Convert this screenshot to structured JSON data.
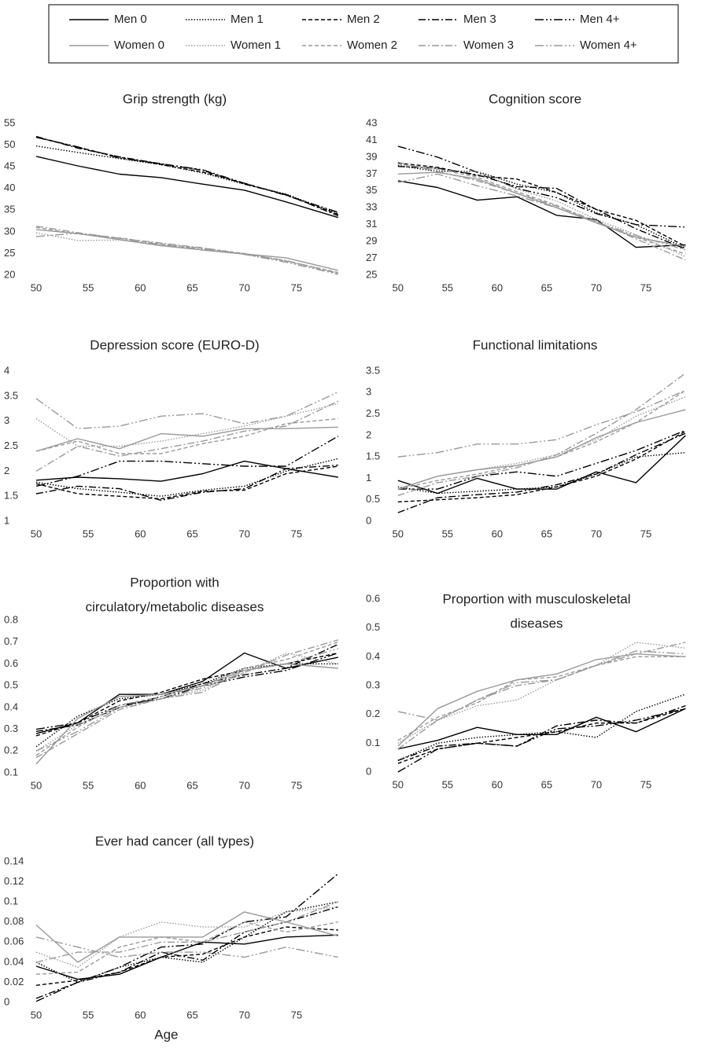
{
  "legend": [
    {
      "name": "Men 0",
      "color": "#000000",
      "dash": "solid"
    },
    {
      "name": "Men 1",
      "color": "#000000",
      "dash": "dotted"
    },
    {
      "name": "Men 2",
      "color": "#000000",
      "dash": "dashed"
    },
    {
      "name": "Men 3",
      "color": "#000000",
      "dash": "dashdot"
    },
    {
      "name": "Men 4+",
      "color": "#000000",
      "dash": "dashdotdot"
    },
    {
      "name": "Women 0",
      "color": "#999999",
      "dash": "solid"
    },
    {
      "name": "Women 1",
      "color": "#999999",
      "dash": "dotted"
    },
    {
      "name": "Women 2",
      "color": "#999999",
      "dash": "dashed"
    },
    {
      "name": "Women 3",
      "color": "#999999",
      "dash": "dashdot"
    },
    {
      "name": "Women 4+",
      "color": "#999999",
      "dash": "dashdotdot"
    }
  ],
  "chart_data": [
    {
      "type": "line",
      "title": "Grip strength (kg)",
      "x": [
        50,
        54,
        58,
        62,
        66,
        70,
        74,
        79
      ],
      "xlim": [
        49.7,
        80
      ],
      "xticks": [
        50,
        55,
        60,
        65,
        70,
        75
      ],
      "ylim": [
        20,
        55
      ],
      "yticks": [
        20,
        25,
        30,
        35,
        40,
        45,
        50,
        55
      ],
      "series": [
        {
          "values": [
            47.4,
            45.2,
            43.3,
            42.5,
            41,
            39.6,
            36.9,
            33.3
          ]
        },
        {
          "values": [
            49.8,
            48.3,
            46.9,
            45.5,
            43.6,
            41,
            38.7,
            34.2
          ]
        },
        {
          "values": [
            51.8,
            49.5,
            47.2,
            45.5,
            43.8,
            41.2,
            38.5,
            34
          ]
        },
        {
          "values": [
            52,
            49.3,
            47.3,
            45.7,
            44.2,
            41,
            38.6,
            33.7
          ]
        },
        {
          "values": [
            51.8,
            49.6,
            47,
            45.7,
            44.3,
            41.2,
            38.4,
            34.5
          ]
        },
        {
          "values": [
            30.5,
            29.6,
            28.2,
            26.8,
            25.8,
            24.9,
            24,
            21.1
          ]
        },
        {
          "values": [
            29.8,
            28,
            28.1,
            27,
            25.8,
            24.8,
            23.2,
            20.5
          ]
        },
        {
          "values": [
            31,
            29.5,
            28.6,
            27.2,
            26.2,
            25,
            23.3,
            20.6
          ]
        },
        {
          "values": [
            31.3,
            29.8,
            28.5,
            27.4,
            26.3,
            24.9,
            23.4,
            20.4
          ]
        },
        {
          "values": [
            28.9,
            29.7,
            28.5,
            27,
            26,
            24.8,
            23,
            20.2
          ]
        }
      ]
    },
    {
      "type": "line",
      "title": "Cognition score",
      "x": [
        50,
        54,
        58,
        62,
        66,
        70,
        74,
        79
      ],
      "xlim": [
        49.7,
        80
      ],
      "xticks": [
        50,
        55,
        60,
        65,
        70,
        75
      ],
      "ylim": [
        25,
        43
      ],
      "yticks": [
        25,
        27,
        29,
        31,
        33,
        35,
        37,
        39,
        41,
        43
      ],
      "series": [
        {
          "values": [
            36.2,
            35.4,
            33.9,
            34.3,
            32.1,
            31.6,
            28.3,
            28.6
          ]
        },
        {
          "values": [
            38,
            37.3,
            37.3,
            35.8,
            34.8,
            32.4,
            31,
            28.2
          ]
        },
        {
          "values": [
            38.3,
            37.8,
            36.8,
            36.4,
            34.8,
            32.8,
            31.5,
            28.4
          ]
        },
        {
          "values": [
            37.9,
            37.7,
            36.9,
            35.5,
            35.3,
            32.8,
            30.5,
            28.1
          ]
        },
        {
          "values": [
            40.3,
            39,
            37.2,
            35.3,
            34.2,
            32.3,
            31,
            30.7
          ]
        },
        {
          "values": [
            37,
            37.2,
            36.4,
            34.7,
            33,
            31.2,
            29.5,
            28.4
          ]
        },
        {
          "values": [
            38.2,
            37.5,
            37.3,
            35.2,
            33.8,
            31.6,
            29.8,
            27.2
          ]
        },
        {
          "values": [
            38.2,
            37.6,
            36.6,
            34.9,
            33.3,
            31.2,
            29.5,
            27.5
          ]
        },
        {
          "values": [
            38.4,
            37.3,
            36.2,
            34.7,
            33.2,
            31.4,
            29.3,
            26.8
          ]
        },
        {
          "values": [
            36,
            37,
            35.6,
            34.4,
            33,
            31.3,
            29.7,
            28
          ]
        }
      ]
    },
    {
      "type": "line",
      "title": "Depression score (EURO-D)",
      "x": [
        50,
        54,
        58,
        62,
        66,
        70,
        74,
        79
      ],
      "xlim": [
        49.7,
        80
      ],
      "xticks": [
        50,
        55,
        60,
        65,
        70,
        75
      ],
      "ylim": [
        1,
        4
      ],
      "yticks": [
        1,
        1.5,
        2,
        2.5,
        3,
        3.5,
        4
      ],
      "series": [
        {
          "values": [
            1.82,
            1.88,
            1.85,
            1.8,
            1.95,
            2.2,
            2.05,
            1.88
          ]
        },
        {
          "values": [
            1.78,
            1.65,
            1.58,
            1.5,
            1.62,
            1.7,
            2,
            2.25
          ]
        },
        {
          "values": [
            1.75,
            1.55,
            1.5,
            1.45,
            1.6,
            1.62,
            1.95,
            2.1
          ]
        },
        {
          "values": [
            1.55,
            1.7,
            1.65,
            1.42,
            1.58,
            1.65,
            2.05,
            2.12
          ]
        },
        {
          "values": [
            1.7,
            1.9,
            2.2,
            2.2,
            2.15,
            2.1,
            2.1,
            2.7
          ]
        },
        {
          "values": [
            2.4,
            2.65,
            2.45,
            2.75,
            2.7,
            2.85,
            2.85,
            2.88
          ]
        },
        {
          "values": [
            3.05,
            2.5,
            2.5,
            2.6,
            2.75,
            2.9,
            3.1,
            3.35
          ]
        },
        {
          "values": [
            2.4,
            2.6,
            2.35,
            2.35,
            2.55,
            2.7,
            2.95,
            3.05
          ]
        },
        {
          "values": [
            2,
            2.5,
            2.3,
            2.45,
            2.6,
            2.8,
            2.9,
            3.4
          ]
        },
        {
          "values": [
            3.45,
            2.85,
            2.9,
            3.1,
            3.15,
            2.95,
            3.1,
            3.58
          ]
        }
      ]
    },
    {
      "type": "line",
      "title": "Functional limitations",
      "x": [
        50,
        54,
        58,
        62,
        66,
        70,
        74,
        79
      ],
      "xlim": [
        49.7,
        80
      ],
      "xticks": [
        50,
        55,
        60,
        65,
        70,
        75
      ],
      "ylim": [
        0,
        3.5
      ],
      "yticks": [
        0,
        0.5,
        1,
        1.5,
        2,
        2.5,
        3,
        3.5
      ],
      "series": [
        {
          "values": [
            0.95,
            0.65,
            1,
            0.75,
            0.75,
            1.15,
            0.9,
            2
          ]
        },
        {
          "values": [
            0.8,
            0.65,
            0.7,
            0.75,
            0.8,
            1.1,
            1.5,
            1.6
          ]
        },
        {
          "values": [
            0.45,
            0.5,
            0.55,
            0.62,
            0.8,
            1.05,
            1.45,
            2.1
          ]
        },
        {
          "values": [
            0.2,
            0.55,
            0.62,
            0.68,
            0.85,
            1.1,
            1.55,
            2.05
          ]
        },
        {
          "values": [
            0.75,
            0.75,
            1.05,
            1.15,
            1.05,
            1.35,
            1.65,
            2.12
          ]
        },
        {
          "values": [
            0.75,
            1.05,
            1.2,
            1.3,
            1.5,
            1.95,
            2.3,
            2.6
          ]
        },
        {
          "values": [
            0.75,
            1.05,
            1.2,
            1.35,
            1.55,
            1.9,
            2.45,
            2.9
          ]
        },
        {
          "values": [
            0.75,
            0.95,
            1.1,
            1.3,
            1.5,
            1.85,
            2.3,
            3.05
          ]
        },
        {
          "values": [
            0.6,
            0.9,
            1.05,
            1.25,
            1.55,
            2.05,
            2.6,
            3.45
          ]
        },
        {
          "values": [
            1.5,
            1.6,
            1.8,
            1.8,
            1.9,
            2.25,
            2.55,
            3.05
          ]
        }
      ]
    },
    {
      "type": "line",
      "title": [
        "Proportion with",
        "circulatory/metabolic diseases"
      ],
      "x": [
        50,
        54,
        58,
        62,
        66,
        70,
        74,
        79
      ],
      "xlim": [
        49.7,
        80
      ],
      "xticks": [
        50,
        55,
        60,
        65,
        70,
        75
      ],
      "ylim": [
        0.1,
        0.8
      ],
      "yticks": [
        0.1,
        0.2,
        0.3,
        0.4,
        0.5,
        0.6,
        0.7,
        0.8
      ],
      "series": [
        {
          "values": [
            0.28,
            0.33,
            0.46,
            0.46,
            0.52,
            0.65,
            0.58,
            0.63
          ]
        },
        {
          "values": [
            0.22,
            0.36,
            0.44,
            0.46,
            0.51,
            0.58,
            0.6,
            0.6
          ]
        },
        {
          "values": [
            0.27,
            0.33,
            0.43,
            0.47,
            0.53,
            0.57,
            0.6,
            0.65
          ]
        },
        {
          "values": [
            0.29,
            0.32,
            0.4,
            0.45,
            0.51,
            0.55,
            0.58,
            0.69
          ]
        },
        {
          "values": [
            0.3,
            0.33,
            0.41,
            0.44,
            0.5,
            0.54,
            0.57,
            0.65
          ]
        },
        {
          "values": [
            0.14,
            0.35,
            0.45,
            0.46,
            0.5,
            0.57,
            0.6,
            0.58
          ]
        },
        {
          "values": [
            0.2,
            0.32,
            0.4,
            0.44,
            0.48,
            0.56,
            0.65,
            0.6
          ]
        },
        {
          "values": [
            0.18,
            0.31,
            0.41,
            0.45,
            0.5,
            0.58,
            0.62,
            0.7
          ]
        },
        {
          "values": [
            0.17,
            0.28,
            0.39,
            0.44,
            0.49,
            0.56,
            0.64,
            0.71
          ]
        },
        {
          "values": [
            0.2,
            0.29,
            0.4,
            0.44,
            0.47,
            0.57,
            0.6,
            0.67
          ]
        }
      ]
    },
    {
      "type": "line",
      "title": [
        "Proportion with musculoskeletal",
        "diseases"
      ],
      "x": [
        50,
        54,
        58,
        62,
        66,
        70,
        74,
        79
      ],
      "xlim": [
        49.7,
        80
      ],
      "xticks": [
        50,
        55,
        60,
        65,
        70,
        75
      ],
      "ylim": [
        0,
        0.6
      ],
      "yticks": [
        0,
        0.1,
        0.2,
        0.3,
        0.4,
        0.5,
        0.6
      ],
      "series": [
        {
          "values": [
            0.08,
            0.11,
            0.155,
            0.13,
            0.13,
            0.19,
            0.14,
            0.22
          ]
        },
        {
          "values": [
            0.04,
            0.1,
            0.12,
            0.13,
            0.14,
            0.12,
            0.21,
            0.27
          ]
        },
        {
          "values": [
            0.03,
            0.08,
            0.1,
            0.12,
            0.14,
            0.17,
            0.17,
            0.22
          ]
        },
        {
          "values": [
            0.04,
            0.09,
            0.1,
            0.09,
            0.16,
            0.18,
            0.17,
            0.23
          ]
        },
        {
          "values": [
            0,
            0.08,
            0.1,
            0.09,
            0.15,
            0.16,
            0.18,
            0.22
          ]
        },
        {
          "values": [
            0.09,
            0.22,
            0.28,
            0.32,
            0.34,
            0.39,
            0.41,
            0.4
          ]
        },
        {
          "values": [
            0.1,
            0.18,
            0.23,
            0.25,
            0.32,
            0.37,
            0.45,
            0.43
          ]
        },
        {
          "values": [
            0.11,
            0.19,
            0.24,
            0.32,
            0.33,
            0.37,
            0.4,
            0.4
          ]
        },
        {
          "values": [
            0.08,
            0.18,
            0.25,
            0.3,
            0.32,
            0.37,
            0.41,
            0.45
          ]
        },
        {
          "values": [
            0.21,
            0.18,
            0.25,
            0.31,
            0.32,
            0.37,
            0.42,
            0.41
          ]
        }
      ]
    },
    {
      "type": "line",
      "title": "Ever had cancer (all types)",
      "x_label": "Age",
      "x": [
        50,
        54,
        58,
        62,
        66,
        70,
        74,
        79
      ],
      "xlim": [
        49.7,
        80
      ],
      "xticks": [
        50,
        55,
        60,
        65,
        70,
        75
      ],
      "ylim": [
        0,
        0.14
      ],
      "yticks": [
        0,
        0.02,
        0.04,
        0.06,
        0.08,
        0.1,
        0.12,
        0.14
      ],
      "series": [
        {
          "values": [
            0.036,
            0.023,
            0.028,
            0.045,
            0.06,
            0.058,
            0.065,
            0.067
          ]
        },
        {
          "values": [
            0.04,
            0.02,
            0.035,
            0.045,
            0.04,
            0.065,
            0.09,
            0.1
          ]
        },
        {
          "values": [
            0.017,
            0.022,
            0.03,
            0.045,
            0.048,
            0.065,
            0.075,
            0.072
          ]
        },
        {
          "values": [
            0.004,
            0.02,
            0.03,
            0.05,
            0.042,
            0.07,
            0.08,
            0.095
          ]
        },
        {
          "values": [
            0.001,
            0.02,
            0.035,
            0.055,
            0.058,
            0.08,
            0.085,
            0.128
          ]
        },
        {
          "values": [
            0.077,
            0.04,
            0.065,
            0.065,
            0.065,
            0.09,
            0.08,
            0.066
          ]
        },
        {
          "values": [
            0.05,
            0.035,
            0.065,
            0.08,
            0.075,
            0.075,
            0.09,
            0.095
          ]
        },
        {
          "values": [
            0.028,
            0.03,
            0.055,
            0.065,
            0.06,
            0.08,
            0.07,
            0.08
          ]
        },
        {
          "values": [
            0.04,
            0.05,
            0.05,
            0.06,
            0.06,
            0.07,
            0.08,
            0.1
          ]
        },
        {
          "values": [
            0.065,
            0.055,
            0.045,
            0.05,
            0.05,
            0.045,
            0.055,
            0.045
          ]
        }
      ]
    }
  ]
}
